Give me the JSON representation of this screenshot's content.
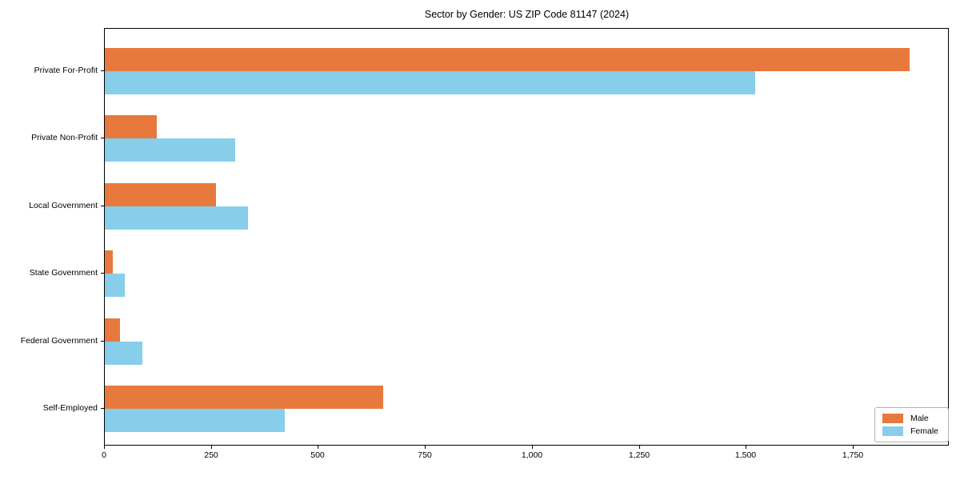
{
  "figure": {
    "title": "Sector by Gender: US ZIP Code 81147 (2024)"
  },
  "chart_data": {
    "type": "bar",
    "orientation": "horizontal",
    "title": "Sector by Gender: US ZIP Code 81147 (2024)",
    "categories": [
      "Private For-Profit",
      "Private Non-Profit",
      "Local Government",
      "State Government",
      "Federal Government",
      "Self-Employed"
    ],
    "series": [
      {
        "name": "Male",
        "color": "#e8793d",
        "values": [
          1880,
          122,
          260,
          18,
          35,
          650
        ]
      },
      {
        "name": "Female",
        "color": "#87ceeb",
        "values": [
          1520,
          305,
          335,
          47,
          88,
          420
        ]
      }
    ],
    "xlabel": "",
    "ylabel": "",
    "xlim": [
      0,
      1974
    ],
    "xticks": [
      0,
      250,
      500,
      750,
      1000,
      1250,
      1500,
      1750
    ],
    "xtick_labels": [
      "0",
      "250",
      "500",
      "750",
      "1,000",
      "1,250",
      "1,500",
      "1,750"
    ],
    "grid": false,
    "legend": {
      "position": "lower right"
    },
    "colors": {
      "spine": "#000000",
      "text": "#000000",
      "legend_border": "#b3b3b3",
      "background": "#ffffff"
    }
  }
}
